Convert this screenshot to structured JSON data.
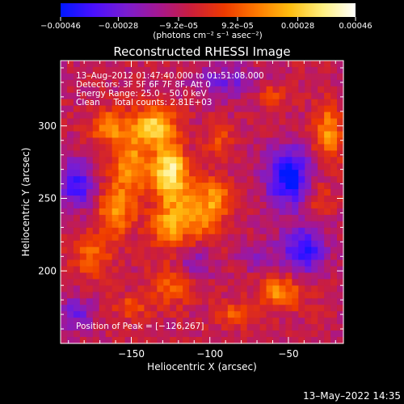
{
  "chart_data": {
    "type": "heatmap",
    "title": "Reconstructed RHESSI Image",
    "xlabel": "Heliocentric X (arcsec)",
    "ylabel": "Heliocentric Y (arcsec)",
    "xlim": [
      -195,
      -15
    ],
    "ylim": [
      150,
      345
    ],
    "x_ticks": [
      -150,
      -100,
      -50
    ],
    "y_ticks": [
      200,
      250,
      300
    ],
    "x_tick_labels": [
      "−150",
      "−100",
      "−50"
    ],
    "y_tick_labels": [
      "200",
      "250",
      "300"
    ],
    "info_lines": [
      "13–Aug–2012 01:47:40.000 to 01:51:08.000",
      "Detectors: 3F 5F 6F 7F 8F, Att 0",
      "Energy Range: 25.0 – 50.0 keV",
      "Clean     Total counts: 2.81E+03"
    ],
    "peak_label": "Position of Peak = [−126,267]",
    "peak": [
      -126,
      267
    ],
    "colorbar": {
      "range": [
        -0.00046,
        0.00046
      ],
      "tick_values": [
        -0.00046,
        -0.00028,
        -9.2e-05,
        9.2e-05,
        0.00028,
        0.00046
      ],
      "tick_labels": [
        "−0.00046",
        "−0.00028",
        "−9.2e–05",
        "9.2e–05",
        "0.00028",
        "0.00046"
      ],
      "units_label": "(photons cm⁻² s⁻¹ asec⁻²)",
      "colors": [
        "#0018ff",
        "#4a10ff",
        "#7a1dd0",
        "#a61790",
        "#cc1e3a",
        "#ee3a00",
        "#ff7a00",
        "#ffbe10",
        "#fff080",
        "#ffffff"
      ]
    },
    "sources": [
      {
        "x": -125,
        "y": 268,
        "amp": 0.00046,
        "sx": 7,
        "sy": 14
      },
      {
        "x": -135,
        "y": 300,
        "amp": 0.00034,
        "sx": 9,
        "sy": 9
      },
      {
        "x": -150,
        "y": 275,
        "amp": 0.00026,
        "sx": 10,
        "sy": 18
      },
      {
        "x": -160,
        "y": 240,
        "amp": 0.00026,
        "sx": 8,
        "sy": 12
      },
      {
        "x": -165,
        "y": 300,
        "amp": 0.00022,
        "sx": 8,
        "sy": 8
      },
      {
        "x": -175,
        "y": 210,
        "amp": 0.0002,
        "sx": 8,
        "sy": 10
      },
      {
        "x": -128,
        "y": 230,
        "amp": 0.00024,
        "sx": 7,
        "sy": 10
      },
      {
        "x": -110,
        "y": 240,
        "amp": 0.00028,
        "sx": 10,
        "sy": 14
      },
      {
        "x": -95,
        "y": 250,
        "amp": 0.0002,
        "sx": 6,
        "sy": 10
      },
      {
        "x": -95,
        "y": 290,
        "amp": 0.00016,
        "sx": 6,
        "sy": 8
      },
      {
        "x": -60,
        "y": 320,
        "amp": 0.00016,
        "sx": 6,
        "sy": 6
      },
      {
        "x": -25,
        "y": 295,
        "amp": 0.00026,
        "sx": 6,
        "sy": 14
      },
      {
        "x": -30,
        "y": 250,
        "amp": 0.00012,
        "sx": 6,
        "sy": 8
      },
      {
        "x": -55,
        "y": 185,
        "amp": 0.00026,
        "sx": 10,
        "sy": 8
      },
      {
        "x": -125,
        "y": 190,
        "amp": 0.00018,
        "sx": 10,
        "sy": 10
      },
      {
        "x": -85,
        "y": 170,
        "amp": 0.00016,
        "sx": 8,
        "sy": 6
      },
      {
        "x": -150,
        "y": 175,
        "amp": 0.00014,
        "sx": 8,
        "sy": 6
      },
      {
        "x": -50,
        "y": 265,
        "amp": -0.0004,
        "sx": 10,
        "sy": 14
      },
      {
        "x": -40,
        "y": 215,
        "amp": -0.0003,
        "sx": 10,
        "sy": 12
      },
      {
        "x": -185,
        "y": 260,
        "amp": -0.0003,
        "sx": 8,
        "sy": 12
      },
      {
        "x": -90,
        "y": 330,
        "amp": -0.00018,
        "sx": 14,
        "sy": 8
      },
      {
        "x": -185,
        "y": 170,
        "amp": -0.0002,
        "sx": 8,
        "sy": 8
      },
      {
        "x": -110,
        "y": 205,
        "amp": -0.00016,
        "sx": 8,
        "sy": 8
      },
      {
        "x": -70,
        "y": 210,
        "amp": -0.00012,
        "sx": 8,
        "sy": 8
      }
    ]
  },
  "timestamp": "13–May–2022 14:35"
}
